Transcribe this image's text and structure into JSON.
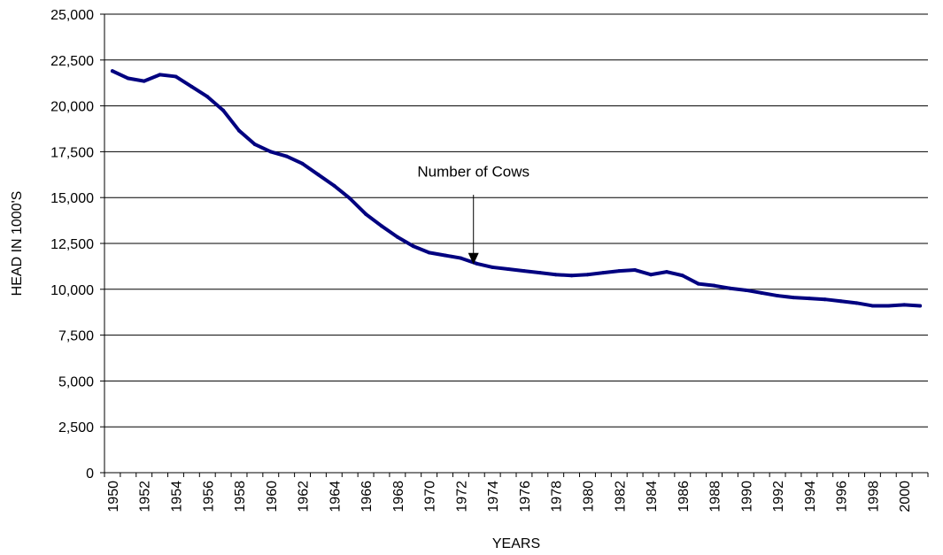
{
  "chart_data": {
    "type": "line",
    "title": "",
    "xlabel": "YEARS",
    "ylabel": "HEAD IN 1000'S",
    "xlim": [
      1950,
      2001
    ],
    "ylim": [
      0,
      25000
    ],
    "y_ticks": [
      0,
      2500,
      5000,
      7500,
      10000,
      12500,
      15000,
      17500,
      20000,
      22500,
      25000
    ],
    "y_tick_labels": [
      "0",
      "2,500",
      "5,000",
      "7,500",
      "10,000",
      "12,500",
      "15,000",
      "17,500",
      "20,000",
      "22,500",
      "25,000"
    ],
    "x_tick_labels": [
      "1950",
      "1952",
      "1954",
      "1956",
      "1958",
      "1960",
      "1962",
      "1964",
      "1966",
      "1968",
      "1970",
      "1972",
      "1974",
      "1976",
      "1978",
      "1980",
      "1982",
      "1984",
      "1986",
      "1988",
      "1990",
      "1992",
      "1994",
      "1996",
      "1998",
      "2000"
    ],
    "grid": "horizontal",
    "legend": "none",
    "series_color": "#000080",
    "annotation": {
      "text": "Number of Cows",
      "points_to_year": 1972.8,
      "points_to_value": 11400
    },
    "series": [
      {
        "x": [
          1950,
          1951,
          1952,
          1953,
          1954,
          1955,
          1956,
          1957,
          1958,
          1959,
          1960,
          1961,
          1962,
          1963,
          1964,
          1965,
          1966,
          1967,
          1968,
          1969,
          1970,
          1971,
          1972,
          1973,
          1974,
          1975,
          1976,
          1977,
          1978,
          1979,
          1980,
          1981,
          1982,
          1983,
          1984,
          1985,
          1986,
          1987,
          1988,
          1989,
          1990,
          1991,
          1992,
          1993,
          1994,
          1995,
          1996,
          1997,
          1998,
          1999,
          2000,
          2001
        ],
        "values": [
          21900,
          21500,
          21350,
          21700,
          21600,
          21050,
          20500,
          19750,
          18650,
          17900,
          17500,
          17250,
          16850,
          16250,
          15650,
          14950,
          14100,
          13450,
          12850,
          12350,
          12000,
          11850,
          11700,
          11400,
          11200,
          11100,
          11000,
          10900,
          10800,
          10750,
          10800,
          10900,
          11000,
          11050,
          10800,
          10950,
          10750,
          10300,
          10200,
          10050,
          9950,
          9800,
          9650,
          9550,
          9500,
          9450,
          9350,
          9250,
          9100,
          9100,
          9150,
          9100
        ]
      }
    ]
  }
}
